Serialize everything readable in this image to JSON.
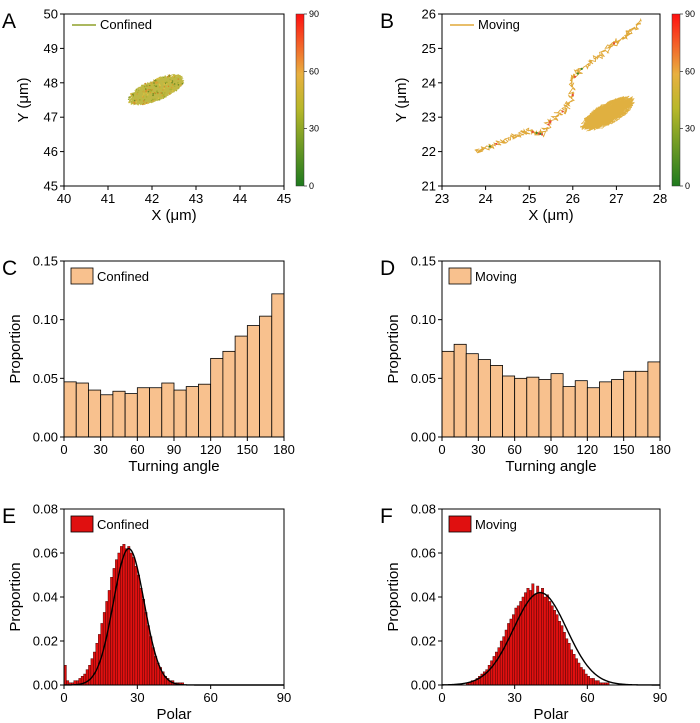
{
  "chart_data": [
    {
      "id": "A",
      "type": "scatter",
      "panel_label": "A",
      "title": "",
      "xlabel": "X (μm)",
      "ylabel": "Y (μm)",
      "xlim": [
        40,
        45
      ],
      "ylim": [
        45,
        50
      ],
      "xticks": [
        40,
        41,
        42,
        43,
        44,
        45
      ],
      "yticks": [
        45,
        46,
        47,
        48,
        49,
        50
      ],
      "legend": "Confined",
      "colorbar": {
        "ticks": [
          0,
          30,
          60,
          90
        ],
        "colors": [
          "#1e7a1e",
          "#d8c030",
          "#ff1010"
        ]
      },
      "trajectory": {
        "description": "compact confined cluster",
        "center": [
          42.1,
          47.8
        ],
        "extent": [
          0.7,
          0.45
        ]
      }
    },
    {
      "id": "B",
      "type": "scatter",
      "panel_label": "B",
      "title": "",
      "xlabel": "X (μm)",
      "ylabel": "Y (μm)",
      "xlim": [
        23,
        28
      ],
      "ylim": [
        21,
        26
      ],
      "xticks": [
        23,
        24,
        25,
        26,
        27,
        28
      ],
      "yticks": [
        21,
        22,
        23,
        24,
        25,
        26
      ],
      "legend": "Moving",
      "colorbar": {
        "ticks": [
          0,
          30,
          60,
          90
        ],
        "colors": [
          "#1e7a1e",
          "#d8c030",
          "#ff1010"
        ]
      },
      "trajectory_path": [
        [
          23.8,
          22.0
        ],
        [
          24.2,
          22.2
        ],
        [
          24.6,
          22.4
        ],
        [
          25.0,
          22.6
        ],
        [
          25.3,
          22.5
        ],
        [
          25.5,
          22.9
        ],
        [
          25.8,
          23.2
        ],
        [
          26.0,
          23.6
        ],
        [
          26.0,
          24.1
        ],
        [
          26.2,
          24.4
        ],
        [
          26.6,
          24.8
        ],
        [
          27.0,
          25.2
        ],
        [
          27.3,
          25.5
        ],
        [
          27.6,
          25.8
        ]
      ],
      "cluster": {
        "center": [
          26.8,
          23.1
        ],
        "extent": [
          0.65,
          0.45
        ]
      }
    },
    {
      "id": "C",
      "type": "bar",
      "panel_label": "C",
      "xlabel": "Turning angle",
      "ylabel": "Proportion",
      "xlim": [
        0,
        180
      ],
      "ylim": [
        0,
        0.15
      ],
      "xticks": [
        0,
        30,
        60,
        90,
        120,
        150,
        180
      ],
      "yticks": [
        0.0,
        0.05,
        0.1,
        0.15
      ],
      "ytick_labels": [
        "0.00",
        "0.05",
        "0.10",
        "0.15"
      ],
      "legend": "Confined",
      "bar_color": "#f8c18e",
      "bin_width": 10,
      "bin_starts": [
        0,
        10,
        20,
        30,
        40,
        50,
        60,
        70,
        80,
        90,
        100,
        110,
        120,
        130,
        140,
        150,
        160,
        170
      ],
      "values": [
        0.047,
        0.046,
        0.04,
        0.036,
        0.039,
        0.037,
        0.042,
        0.042,
        0.046,
        0.04,
        0.043,
        0.045,
        0.067,
        0.073,
        0.086,
        0.095,
        0.103,
        0.122
      ]
    },
    {
      "id": "D",
      "type": "bar",
      "panel_label": "D",
      "xlabel": "Turning angle",
      "ylabel": "Proportion",
      "xlim": [
        0,
        180
      ],
      "ylim": [
        0,
        0.15
      ],
      "xticks": [
        0,
        30,
        60,
        90,
        120,
        150,
        180
      ],
      "yticks": [
        0.0,
        0.05,
        0.1,
        0.15
      ],
      "ytick_labels": [
        "0.00",
        "0.05",
        "0.10",
        "0.15"
      ],
      "legend": "Moving",
      "bar_color": "#f8c18e",
      "bin_width": 10,
      "bin_starts": [
        0,
        10,
        20,
        30,
        40,
        50,
        60,
        70,
        80,
        90,
        100,
        110,
        120,
        130,
        140,
        150,
        160,
        170
      ],
      "values": [
        0.073,
        0.079,
        0.071,
        0.066,
        0.061,
        0.052,
        0.05,
        0.051,
        0.049,
        0.054,
        0.043,
        0.048,
        0.042,
        0.047,
        0.049,
        0.056,
        0.056,
        0.064
      ]
    },
    {
      "id": "E",
      "type": "bar",
      "panel_label": "E",
      "xlabel": "Polar",
      "ylabel": "Proportion",
      "xlim": [
        0,
        90
      ],
      "ylim": [
        0,
        0.08
      ],
      "xticks": [
        0,
        30,
        60,
        90
      ],
      "yticks": [
        0.0,
        0.02,
        0.04,
        0.06,
        0.08
      ],
      "ytick_labels": [
        "0.00",
        "0.02",
        "0.04",
        "0.06",
        "0.08"
      ],
      "legend": "Confined",
      "bar_color": "#e01010",
      "bin_width": 1,
      "bin_starts": [
        0,
        1,
        2,
        3,
        4,
        5,
        6,
        7,
        8,
        9,
        10,
        11,
        12,
        13,
        14,
        15,
        16,
        17,
        18,
        19,
        20,
        21,
        22,
        23,
        24,
        25,
        26,
        27,
        28,
        29,
        30,
        31,
        32,
        33,
        34,
        35,
        36,
        37,
        38,
        39,
        40,
        41,
        42,
        43,
        44,
        45,
        46,
        47,
        48,
        49,
        50
      ],
      "values": [
        0.009,
        0.002,
        0.001,
        0.001,
        0.002,
        0.002,
        0.003,
        0.004,
        0.005,
        0.007,
        0.009,
        0.012,
        0.015,
        0.019,
        0.023,
        0.028,
        0.033,
        0.038,
        0.043,
        0.049,
        0.053,
        0.057,
        0.06,
        0.063,
        0.064,
        0.062,
        0.063,
        0.06,
        0.058,
        0.054,
        0.05,
        0.044,
        0.039,
        0.033,
        0.027,
        0.022,
        0.017,
        0.013,
        0.01,
        0.008,
        0.006,
        0.004,
        0.003,
        0.002,
        0.002,
        0.001,
        0.001,
        0.001,
        0.001,
        0.0,
        0.0
      ],
      "fit": {
        "type": "gaussian",
        "mean": 26.5,
        "sd": 6.3,
        "peak": 0.062,
        "color": "#000000"
      }
    },
    {
      "id": "F",
      "type": "bar",
      "panel_label": "F",
      "xlabel": "Polar",
      "ylabel": "Proportion",
      "xlim": [
        0,
        90
      ],
      "ylim": [
        0,
        0.08
      ],
      "xticks": [
        0,
        30,
        60,
        90
      ],
      "yticks": [
        0.0,
        0.02,
        0.04,
        0.06,
        0.08
      ],
      "ytick_labels": [
        "0.00",
        "0.02",
        "0.04",
        "0.06",
        "0.08"
      ],
      "legend": "Moving",
      "bar_color": "#e01010",
      "bin_width": 1,
      "bin_starts": [
        10,
        11,
        12,
        13,
        14,
        15,
        16,
        17,
        18,
        19,
        20,
        21,
        22,
        23,
        24,
        25,
        26,
        27,
        28,
        29,
        30,
        31,
        32,
        33,
        34,
        35,
        36,
        37,
        38,
        39,
        40,
        41,
        42,
        43,
        44,
        45,
        46,
        47,
        48,
        49,
        50,
        51,
        52,
        53,
        54,
        55,
        56,
        57,
        58,
        59,
        60,
        61,
        62,
        63,
        64,
        65,
        66,
        67,
        68,
        69,
        70
      ],
      "values": [
        0.001,
        0.001,
        0.002,
        0.002,
        0.003,
        0.004,
        0.005,
        0.006,
        0.007,
        0.009,
        0.011,
        0.013,
        0.015,
        0.017,
        0.02,
        0.022,
        0.025,
        0.028,
        0.03,
        0.032,
        0.035,
        0.036,
        0.038,
        0.04,
        0.042,
        0.044,
        0.043,
        0.046,
        0.041,
        0.045,
        0.042,
        0.044,
        0.04,
        0.041,
        0.038,
        0.036,
        0.034,
        0.032,
        0.029,
        0.027,
        0.024,
        0.021,
        0.019,
        0.016,
        0.014,
        0.012,
        0.01,
        0.008,
        0.007,
        0.005,
        0.004,
        0.003,
        0.003,
        0.002,
        0.002,
        0.001,
        0.001,
        0.001,
        0.001,
        0.0,
        0.0
      ],
      "fit": {
        "type": "gaussian",
        "mean": 40.5,
        "sd": 11.0,
        "peak": 0.042,
        "color": "#000000"
      }
    }
  ]
}
